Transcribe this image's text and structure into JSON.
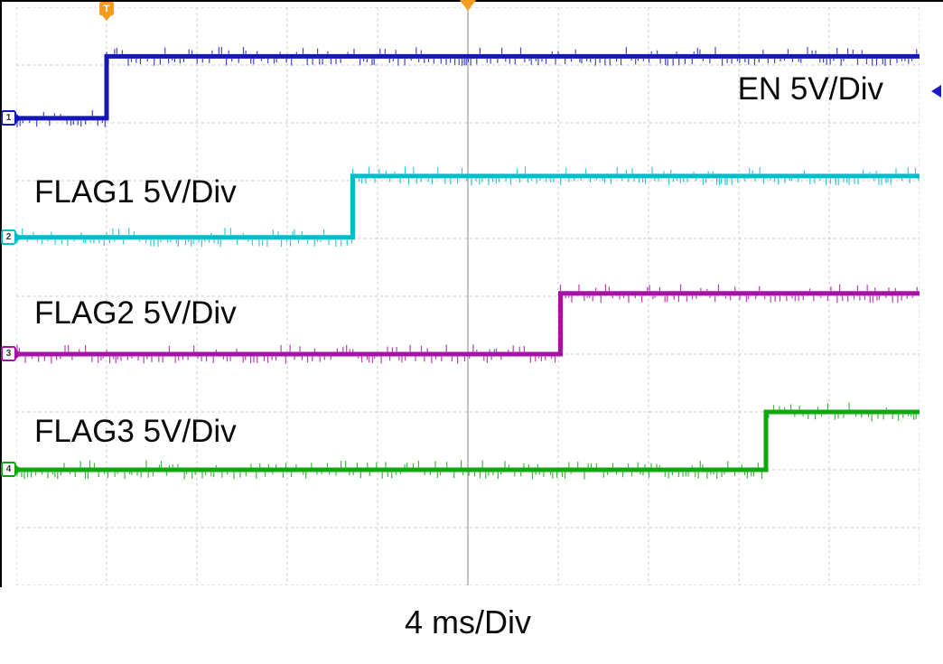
{
  "scope": {
    "trigger_marker": "T",
    "trigger_color": "#F79A20",
    "trigger_level_arrow_color": "#1A1AC8",
    "channels": [
      {
        "number": "1",
        "color": "#1518B4"
      },
      {
        "number": "2",
        "color": "#00BEC8"
      },
      {
        "number": "3",
        "color": "#A611A6"
      },
      {
        "number": "4",
        "color": "#0CA80C"
      }
    ]
  },
  "chart_data": {
    "type": "line",
    "xlabel": "4 ms/Div",
    "ms_per_div": 4,
    "volts_per_div": 5,
    "x_range_ms": [
      0,
      40
    ],
    "h_divs": 10,
    "v_divs": 10,
    "grid": "dashed",
    "trigger_time_div": 1.0,
    "trigger_position_div": 5.0,
    "series": [
      {
        "name": "EN",
        "label": "EN 5V/Div",
        "color": "#1518B4",
        "rise_ms": 4.0,
        "low_v": 0,
        "high_v": 5,
        "low_div": 1.92,
        "high_div": 0.85
      },
      {
        "name": "FLAG1",
        "label": "FLAG1 5V/Div",
        "color": "#00BEC8",
        "rise_ms": 14.9,
        "low_v": 0,
        "high_v": 5,
        "low_div": 3.98,
        "high_div": 2.92
      },
      {
        "name": "FLAG2",
        "label": "FLAG2 5V/Div",
        "color": "#A611A6",
        "rise_ms": 24.1,
        "low_v": 0,
        "high_v": 5,
        "low_div": 6.0,
        "high_div": 4.95
      },
      {
        "name": "FLAG3",
        "label": "FLAG3 5V/Div",
        "color": "#0CA80C",
        "rise_ms": 33.2,
        "low_v": 0,
        "high_v": 5,
        "low_div": 8.0,
        "high_div": 7.0
      }
    ]
  }
}
